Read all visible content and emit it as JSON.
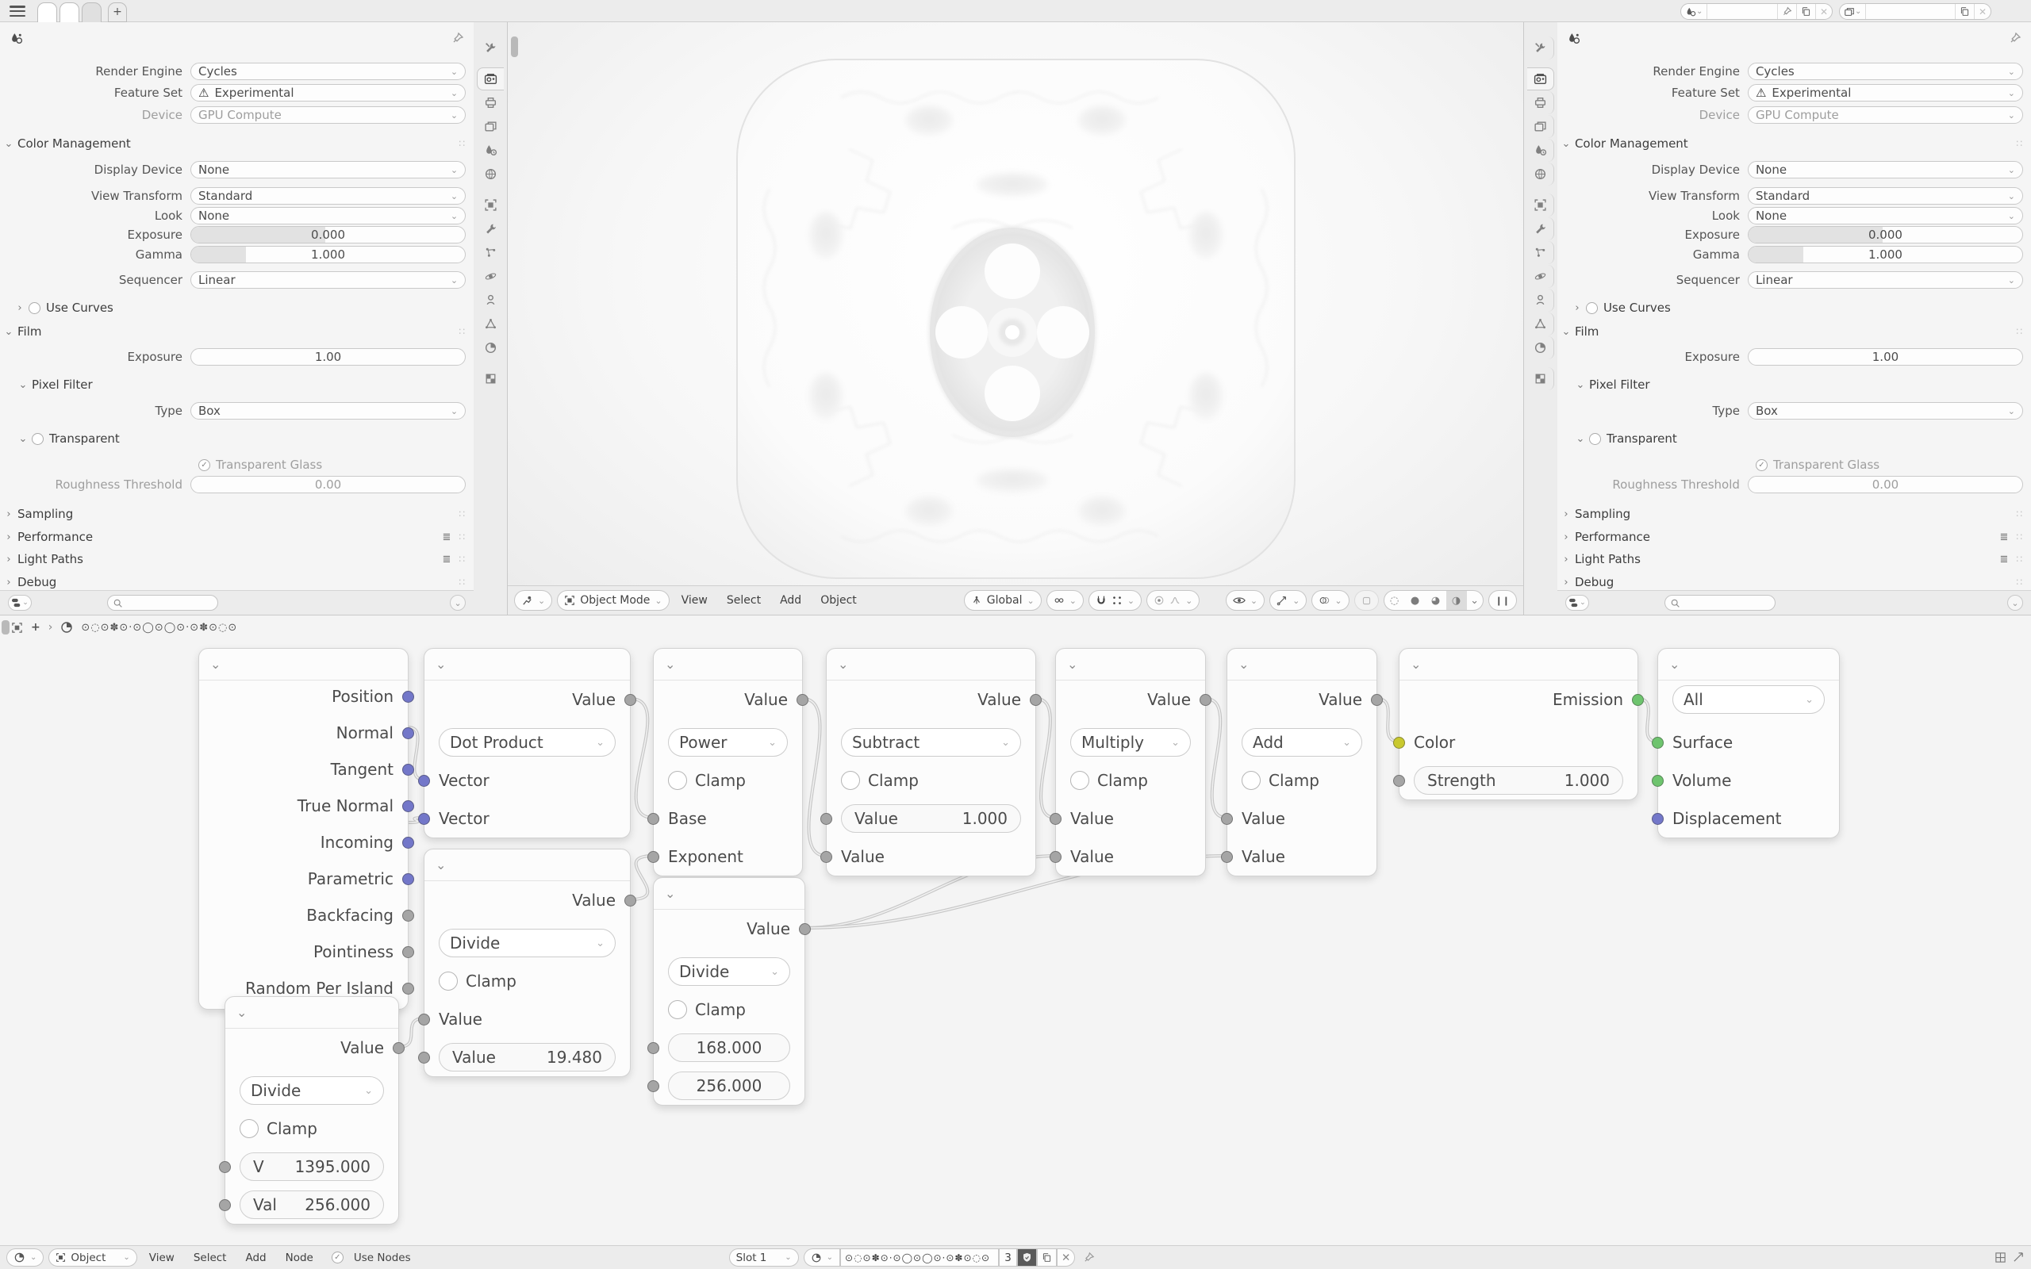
{
  "icons": {
    "chevron_down": "⌄",
    "chevron_right": "›",
    "plus": "+",
    "warning": "⚠",
    "check": "✓",
    "close": "✕",
    "drag_dots": "∷",
    "list": "≣",
    "pause": "❙❙",
    "wireframe": "◌",
    "solid": "●",
    "material_preview": "◕",
    "rendered": "◑"
  },
  "topbar": {
    "tabs": [
      "",
      "",
      ""
    ],
    "add_tab": "+"
  },
  "properties": {
    "render_engine": {
      "label": "Render Engine",
      "value": "Cycles"
    },
    "feature_set": {
      "label": "Feature Set",
      "value": "Experimental"
    },
    "device": {
      "label": "Device",
      "value": "GPU Compute"
    },
    "color_management": {
      "title": "Color Management",
      "display_device": {
        "label": "Display Device",
        "value": "None"
      },
      "view_transform": {
        "label": "View Transform",
        "value": "Standard"
      },
      "look": {
        "label": "Look",
        "value": "None"
      },
      "exposure": {
        "label": "Exposure",
        "value": "0.000"
      },
      "gamma": {
        "label": "Gamma",
        "value": "1.000"
      },
      "sequencer": {
        "label": "Sequencer",
        "value": "Linear"
      },
      "use_curves": "Use Curves"
    },
    "film": {
      "title": "Film",
      "exposure": {
        "label": "Exposure",
        "value": "1.00"
      },
      "pixel_filter": {
        "title": "Pixel Filter",
        "type_label": "Type",
        "type_value": "Box"
      },
      "transparent": {
        "title": "Transparent",
        "glass": "Transparent Glass",
        "roughness_label": "Roughness Threshold",
        "roughness_value": "0.00"
      }
    },
    "sections": [
      "Sampling",
      "Performance",
      "Light Paths",
      "Debug"
    ]
  },
  "viewport": {
    "mode": "Object Mode",
    "menus": [
      "View",
      "Select",
      "Add",
      "Object"
    ],
    "orientation": "Global"
  },
  "node_editor": {
    "path": "⊙◌⊙✽⊙·⊙◯⊙◯⊙·⊙✽⊙◌⊙",
    "footer": {
      "shader_type": "Object",
      "menus": [
        "View",
        "Select",
        "Add",
        "Node"
      ],
      "use_nodes": "Use Nodes",
      "slot": "Slot 1",
      "material_name": "⊙◌⊙✽⊙·⊙◯⊙◯⊙·⊙✽⊙◌⊙",
      "users": "3"
    },
    "nodes": {
      "geometry": {
        "outputs": [
          "Position",
          "Normal",
          "Tangent",
          "True Normal",
          "Incoming",
          "Parametric",
          "Backfacing",
          "Pointiness",
          "Random Per Island"
        ]
      },
      "dot_product": {
        "output": "Value",
        "operation": "Dot Product",
        "inputs": [
          "Vector",
          "Vector"
        ]
      },
      "power": {
        "output": "Value",
        "operation": "Power",
        "clamp": "Clamp",
        "inputs": [
          "Base",
          "Exponent"
        ]
      },
      "subtract": {
        "output": "Value",
        "operation": "Subtract",
        "clamp": "Clamp",
        "field_label": "Value",
        "field_value": "1.000",
        "input": "Value"
      },
      "multiply": {
        "output": "Value",
        "operation": "Multiply",
        "clamp": "Clamp",
        "inputs": [
          "Value",
          "Value"
        ]
      },
      "add": {
        "output": "Value",
        "operation": "Add",
        "clamp": "Clamp",
        "inputs": [
          "Value",
          "Value"
        ]
      },
      "emission": {
        "output": "Emission",
        "color_label": "Color",
        "strength_label": "Strength",
        "strength_value": "1.000"
      },
      "material_output": {
        "target": "All",
        "inputs": [
          "Surface",
          "Volume",
          "Displacement"
        ]
      },
      "divide_a": {
        "output": "Value",
        "operation": "Divide",
        "clamp": "Clamp",
        "field1_label": "V",
        "field1_value": "1395.000",
        "field2_label": "Val",
        "field2_value": "256.000"
      },
      "divide_b": {
        "output": "Value",
        "operation": "Divide",
        "clamp": "Clamp",
        "input": "Value",
        "field_label": "Value",
        "field_value": "19.480"
      },
      "divide_c": {
        "output": "Value",
        "operation": "Divide",
        "clamp": "Clamp",
        "field1_value": "168.000",
        "field2_value": "256.000"
      }
    }
  }
}
